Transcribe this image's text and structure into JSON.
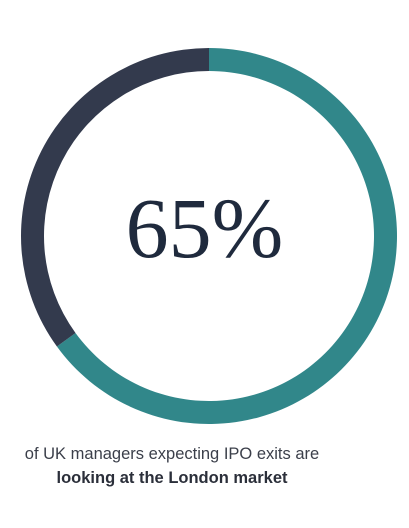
{
  "chart_data": {
    "type": "pie",
    "donut": true,
    "slices": [
      {
        "value": 65,
        "color": "#31878a"
      },
      {
        "value": 35,
        "color": "#333a4d"
      }
    ],
    "center_label": "65%",
    "caption_line1": "of UK managers expecting IPO exits are",
    "caption_line2": "looking at the London market"
  }
}
